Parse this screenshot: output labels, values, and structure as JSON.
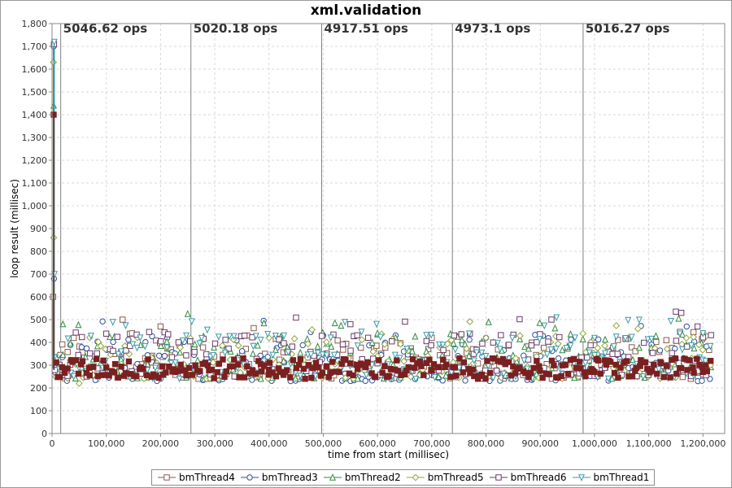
{
  "chart_data": {
    "type": "scatter",
    "title": "xml.validation",
    "xlabel": "time from start (millisec)",
    "ylabel": "loop result (millisec)",
    "xlim": [
      0,
      1240000
    ],
    "ylim": [
      0,
      1800
    ],
    "x_ticks": [
      0,
      100000,
      200000,
      300000,
      400000,
      500000,
      600000,
      700000,
      800000,
      900000,
      1000000,
      1100000,
      1200000
    ],
    "x_tick_labels": [
      "0",
      "100,000",
      "200,000",
      "300,000",
      "400,000",
      "500,000",
      "600,000",
      "700,000",
      "800,000",
      "900,000",
      "1,000,000",
      "1,100,000",
      "1,200,000"
    ],
    "y_ticks": [
      0,
      100,
      200,
      300,
      400,
      500,
      600,
      700,
      800,
      900,
      1000,
      1100,
      1200,
      1300,
      1400,
      1500,
      1600,
      1700,
      1800
    ],
    "y_tick_labels": [
      "0",
      "100",
      "200",
      "300",
      "400",
      "500",
      "600",
      "700",
      "800",
      "900",
      "1,000",
      "1,100",
      "1,200",
      "1,300",
      "1,400",
      "1,500",
      "1,600",
      "1,700",
      "1,800"
    ],
    "grid": true,
    "legend_position": "bottom",
    "markers": [
      {
        "x": 16000,
        "label": "5046.62 ops"
      },
      {
        "x": 256000,
        "label": "5020.18 ops"
      },
      {
        "x": 497000,
        "label": "4917.51 ops"
      },
      {
        "x": 738000,
        "label": "4973.1 ops"
      },
      {
        "x": 979000,
        "label": "5016.27 ops"
      }
    ],
    "series": [
      {
        "name": "bmThread4",
        "marker": "square",
        "color": "#8b5a4a",
        "typical_range": [
          240,
          420
        ],
        "peak": 600,
        "sample_points": [
          [
            2000,
            600
          ],
          [
            40000,
            420
          ],
          [
            130000,
            500
          ],
          [
            200000,
            470
          ],
          [
            360000,
            430
          ],
          [
            700000,
            420
          ],
          [
            1000000,
            410
          ],
          [
            1200000,
            260
          ]
        ]
      },
      {
        "name": "bmThread3",
        "marker": "circle",
        "color": "#2e4e9e",
        "typical_range": [
          230,
          430
        ],
        "peak": 1700,
        "sample_points": [
          [
            3000,
            1700
          ],
          [
            3500,
            680
          ],
          [
            80000,
            235
          ],
          [
            200000,
            240
          ],
          [
            390000,
            495
          ],
          [
            500000,
            430
          ],
          [
            800000,
            420
          ],
          [
            1170000,
            470
          ]
        ]
      },
      {
        "name": "bmThread2",
        "marker": "triangle-up",
        "color": "#2e8b3e",
        "typical_range": [
          240,
          440
        ],
        "peak": 1440,
        "sample_points": [
          [
            3000,
            1440
          ],
          [
            20000,
            480
          ],
          [
            250000,
            525
          ],
          [
            280000,
            240
          ],
          [
            600000,
            440
          ],
          [
            900000,
            430
          ],
          [
            1200000,
            430
          ]
        ]
      },
      {
        "name": "bmThread5",
        "marker": "diamond",
        "color": "#8fa63a",
        "typical_range": [
          240,
          430
        ],
        "peak": 1630,
        "sample_points": [
          [
            2500,
            1630
          ],
          [
            3000,
            860
          ],
          [
            50000,
            220
          ],
          [
            400000,
            420
          ],
          [
            800000,
            420
          ],
          [
            1080000,
            460
          ],
          [
            1200000,
            440
          ]
        ]
      },
      {
        "name": "bmThread6",
        "marker": "square-stem",
        "color": "#6b3a6b",
        "typical_range": [
          250,
          440
        ],
        "peak": 1710,
        "sample_points": [
          [
            3500,
            1710
          ],
          [
            550000,
            480
          ],
          [
            1150000,
            535
          ],
          [
            1160000,
            530
          ],
          [
            1190000,
            470
          ]
        ]
      },
      {
        "name": "bmThread1",
        "marker": "triangle-down",
        "color": "#3a9ba6",
        "typical_range": [
          240,
          440
        ],
        "peak": 1720,
        "sample_points": [
          [
            4000,
            1720
          ],
          [
            4500,
            700
          ],
          [
            540000,
            490
          ],
          [
            930000,
            510
          ],
          [
            1000000,
            420
          ],
          [
            1200000,
            440
          ]
        ]
      },
      {
        "name": "",
        "marker": "square-filled",
        "color": "#7b2020",
        "typical_range": [
          240,
          330
        ],
        "peak": 1400,
        "sample_points": [
          [
            3000,
            1400
          ],
          [
            100000,
            290
          ],
          [
            400000,
            280
          ],
          [
            700000,
            275
          ],
          [
            1000000,
            270
          ],
          [
            1200000,
            270
          ]
        ]
      }
    ]
  }
}
